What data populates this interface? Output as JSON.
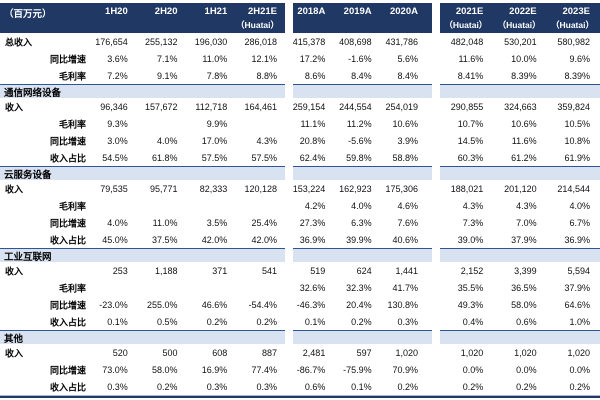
{
  "colors": {
    "header_bg": "#1F3864",
    "band_bg": "#D9E2F1",
    "band_border": "#2F5597",
    "bottom_line": "#1F3864"
  },
  "table": {
    "unit_label": "（百万元）",
    "headers": [
      {
        "group": 1,
        "line1": "1H20",
        "line2": ""
      },
      {
        "group": 1,
        "line1": "2H20",
        "line2": ""
      },
      {
        "group": 1,
        "line1": "1H21",
        "line2": ""
      },
      {
        "group": 1,
        "line1": "2H21E",
        "line2": "（Huatai）"
      },
      {
        "group": 2,
        "line1": "2018A",
        "line2": ""
      },
      {
        "group": 2,
        "line1": "2019A",
        "line2": ""
      },
      {
        "group": 2,
        "line1": "2020A",
        "line2": ""
      },
      {
        "group": 3,
        "line1": "2021E",
        "line2": "（Huatai）"
      },
      {
        "group": 3,
        "line1": "2022E",
        "line2": "（Huatai）"
      },
      {
        "group": 3,
        "line1": "2023E",
        "line2": "（Huatai）"
      }
    ],
    "rows": [
      {
        "type": "data",
        "label": "总收入",
        "indent": false,
        "cells": [
          "176,654",
          "255,132",
          "196,030",
          "286,018",
          "415,378",
          "408,698",
          "431,786",
          "482,048",
          "530,201",
          "580,982"
        ]
      },
      {
        "type": "data",
        "label": "同比增速",
        "indent": true,
        "cells": [
          "3.6%",
          "7.1%",
          "11.0%",
          "12.1%",
          "17.2%",
          "-1.6%",
          "5.6%",
          "11.6%",
          "10.0%",
          "9.6%"
        ]
      },
      {
        "type": "data",
        "label": "毛利率",
        "indent": true,
        "cells": [
          "7.2%",
          "9.1%",
          "7.8%",
          "8.8%",
          "8.6%",
          "8.4%",
          "8.4%",
          "8.41%",
          "8.39%",
          "8.39%"
        ]
      },
      {
        "type": "section",
        "label": "通信网络设备"
      },
      {
        "type": "data",
        "label": "收入",
        "indent": false,
        "cells": [
          "96,346",
          "157,672",
          "112,718",
          "164,461",
          "259,154",
          "244,554",
          "254,019",
          "290,855",
          "324,663",
          "359,824"
        ]
      },
      {
        "type": "data",
        "label": "毛利率",
        "indent": true,
        "cells": [
          "9.3%",
          "",
          "9.9%",
          "",
          "11.1%",
          "11.2%",
          "10.6%",
          "10.7%",
          "10.6%",
          "10.5%"
        ]
      },
      {
        "type": "data",
        "label": "同比增速",
        "indent": true,
        "cells": [
          "3.0%",
          "4.0%",
          "17.0%",
          "4.3%",
          "20.8%",
          "-5.6%",
          "3.9%",
          "14.5%",
          "11.6%",
          "10.8%"
        ]
      },
      {
        "type": "data",
        "label": "收入占比",
        "indent": true,
        "cells": [
          "54.5%",
          "61.8%",
          "57.5%",
          "57.5%",
          "62.4%",
          "59.8%",
          "58.8%",
          "60.3%",
          "61.2%",
          "61.9%"
        ]
      },
      {
        "type": "section",
        "label": "云服务设备"
      },
      {
        "type": "data",
        "label": "收入",
        "indent": false,
        "cells": [
          "79,535",
          "95,771",
          "82,333",
          "120,128",
          "153,224",
          "162,923",
          "175,306",
          "188,021",
          "201,120",
          "214,544"
        ]
      },
      {
        "type": "data",
        "label": "毛利率",
        "indent": true,
        "cells": [
          "",
          "",
          "",
          "",
          "4.2%",
          "4.0%",
          "4.6%",
          "4.3%",
          "4.3%",
          "4.0%"
        ]
      },
      {
        "type": "data",
        "label": "同比增速",
        "indent": true,
        "cells": [
          "4.0%",
          "11.0%",
          "3.5%",
          "25.4%",
          "27.3%",
          "6.3%",
          "7.6%",
          "7.3%",
          "7.0%",
          "6.7%"
        ]
      },
      {
        "type": "data",
        "label": "收入占比",
        "indent": true,
        "cells": [
          "45.0%",
          "37.5%",
          "42.0%",
          "42.0%",
          "36.9%",
          "39.9%",
          "40.6%",
          "39.0%",
          "37.9%",
          "36.9%"
        ]
      },
      {
        "type": "section",
        "label": "工业互联网"
      },
      {
        "type": "data",
        "label": "收入",
        "indent": false,
        "cells": [
          "253",
          "1,188",
          "371",
          "541",
          "519",
          "624",
          "1,441",
          "2,152",
          "3,399",
          "5,594"
        ]
      },
      {
        "type": "data",
        "label": "毛利率",
        "indent": true,
        "cells": [
          "",
          "",
          "",
          "",
          "32.6%",
          "32.3%",
          "41.7%",
          "35.5%",
          "36.5%",
          "37.9%"
        ]
      },
      {
        "type": "data",
        "label": "同比增速",
        "indent": true,
        "cells": [
          "-23.0%",
          "255.0%",
          "46.6%",
          "-54.4%",
          "-46.3%",
          "20.4%",
          "130.8%",
          "49.3%",
          "58.0%",
          "64.6%"
        ]
      },
      {
        "type": "data",
        "label": "收入占比",
        "indent": true,
        "cells": [
          "0.1%",
          "0.5%",
          "0.2%",
          "0.2%",
          "0.1%",
          "0.2%",
          "0.3%",
          "0.4%",
          "0.6%",
          "1.0%"
        ]
      },
      {
        "type": "section",
        "label": "其他"
      },
      {
        "type": "data",
        "label": "收入",
        "indent": false,
        "cells": [
          "520",
          "500",
          "608",
          "887",
          "2,481",
          "597",
          "1,020",
          "1,020",
          "1,020",
          "1,020"
        ]
      },
      {
        "type": "data",
        "label": "同比增速",
        "indent": true,
        "cells": [
          "73.0%",
          "58.0%",
          "16.9%",
          "77.4%",
          "-86.7%",
          "-75.9%",
          "70.9%",
          "0.0%",
          "0.0%",
          "0.0%"
        ]
      },
      {
        "type": "data",
        "label": "收入占比",
        "indent": true,
        "cells": [
          "0.3%",
          "0.2%",
          "0.3%",
          "0.3%",
          "0.6%",
          "0.1%",
          "0.2%",
          "0.2%",
          "0.2%",
          "0.2%"
        ]
      }
    ]
  }
}
